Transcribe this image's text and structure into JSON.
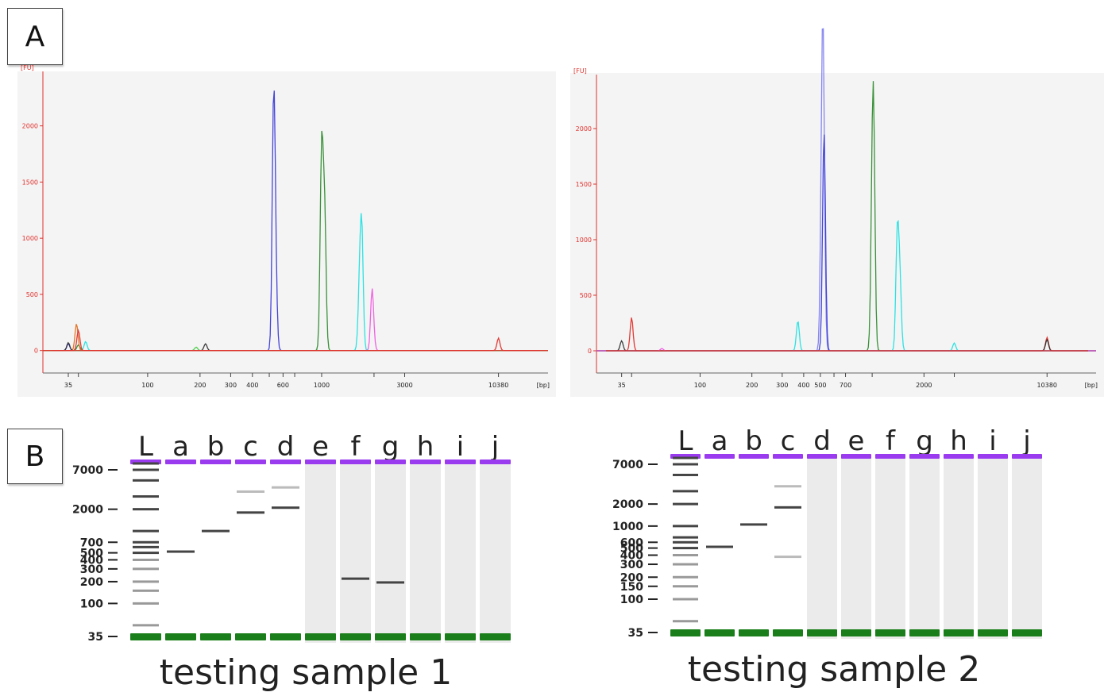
{
  "panels": {
    "a_label": "A",
    "b_label": "B"
  },
  "captions": [
    "testing sample 1",
    "testing sample 2"
  ],
  "colors": {
    "axis": "#e0302b",
    "plot_bg": "#f4f4f4",
    "marker_band": "#1a7f1a",
    "upper_band": "#9b3bf0",
    "gel_band": "#444444"
  },
  "chart_data": [
    {
      "type": "line",
      "title": "",
      "ylabel": "[FU]",
      "xlabel": "[bp]",
      "x_scale": "log",
      "xlim": [
        25,
        20000
      ],
      "ylim": [
        -200,
        2400
      ],
      "yticks": [
        0,
        500,
        1000,
        1500,
        2000
      ],
      "xticks": [
        35,
        100,
        200,
        300,
        400,
        600,
        1000,
        3000,
        10380
      ],
      "xtick_labels": [
        "35",
        "100",
        "200",
        "300",
        "400",
        "600",
        "1000",
        "3000",
        "10380"
      ],
      "extra_tick_marks": [
        40,
        500,
        700,
        2000
      ],
      "grid": false,
      "series": [
        {
          "color": "#3a3ad8",
          "peaks": [
            [
              35,
              60
            ],
            [
              530,
              2180
            ],
            [
              545,
              500
            ]
          ]
        },
        {
          "color": "#2e8b2e",
          "peaks": [
            [
              40,
              50
            ],
            [
              1000,
              1780
            ],
            [
              1040,
              1200
            ]
          ]
        },
        {
          "color": "#22e0e0",
          "peaks": [
            [
              44,
              80
            ],
            [
              1700,
              1040
            ],
            [
              1650,
              500
            ]
          ]
        },
        {
          "color": "#f05ae0",
          "peaks": [
            [
              1950,
              540
            ],
            [
              2000,
              30
            ]
          ]
        },
        {
          "color": "#e07020",
          "peaks": [
            [
              39,
              240
            ]
          ]
        },
        {
          "color": "#333333",
          "peaks": [
            [
              35,
              70
            ],
            [
              215,
              60
            ]
          ]
        },
        {
          "color": "#44cc44",
          "peaks": [
            [
              190,
              30
            ]
          ]
        },
        {
          "color": "#e0302b",
          "peaks": [
            [
              40,
              180
            ],
            [
              10380,
              110
            ]
          ]
        }
      ]
    },
    {
      "type": "line",
      "title": "",
      "ylabel": "[FU]",
      "xlabel": "[bp]",
      "x_scale": "log",
      "xlim": [
        25,
        20000
      ],
      "ylim": [
        -200,
        2400
      ],
      "yticks": [
        0,
        500,
        1000,
        1500,
        2000
      ],
      "xticks": [
        35,
        100,
        200,
        300,
        400,
        500,
        700,
        2000,
        10380
      ],
      "xtick_labels": [
        "35",
        "100",
        "200",
        "300",
        "400",
        "500",
        "700",
        "2000",
        "10380"
      ],
      "extra_tick_marks": [
        40,
        600,
        1000,
        3000
      ],
      "grid": false,
      "series": [
        {
          "color": "#8080f0",
          "peaks": [
            [
              520,
              2100
            ],
            [
              510,
              1300
            ]
          ]
        },
        {
          "color": "#3a3ad8",
          "peaks": [
            [
              525,
              1980
            ]
          ]
        },
        {
          "color": "#2e8b2e",
          "peaks": [
            [
              1020,
              1730
            ],
            [
              1000,
              1000
            ]
          ]
        },
        {
          "color": "#22e0e0",
          "peaks": [
            [
              370,
              270
            ],
            [
              1400,
              1050
            ],
            [
              1450,
              600
            ],
            [
              3000,
              70
            ]
          ]
        },
        {
          "color": "#e0302b",
          "peaks": [
            [
              40,
              300
            ],
            [
              10380,
              120
            ]
          ]
        },
        {
          "color": "#333333",
          "peaks": [
            [
              35,
              90
            ],
            [
              10380,
              100
            ]
          ]
        },
        {
          "color": "#f05ae0",
          "peaks": [
            [
              60,
              20
            ]
          ]
        }
      ]
    },
    {
      "type": "gel",
      "caption": "testing sample 1",
      "lanes": [
        "L",
        "a",
        "b",
        "c",
        "d",
        "e",
        "f",
        "g",
        "h",
        "i",
        "j"
      ],
      "size_labels": [
        "7000",
        "2000",
        "700",
        "500",
        "400",
        "300",
        "200",
        "100",
        "35"
      ],
      "size_values": [
        7000,
        2000,
        700,
        500,
        400,
        300,
        200,
        100,
        35
      ],
      "ladder_bands": [
        10380,
        7000,
        5000,
        3000,
        2000,
        1000,
        700,
        600,
        500,
        400,
        300,
        200,
        150,
        100,
        50
      ],
      "sample_bands": {
        "a": [
          520
        ],
        "b": [
          1000
        ],
        "c": [
          1800,
          3500
        ],
        "d": [
          2100,
          4000
        ],
        "f": [
          220
        ],
        "g": [
          195
        ]
      },
      "smear_lanes": [
        "e",
        "f",
        "g",
        "h",
        "i",
        "j"
      ],
      "marker": {
        "lower": 35,
        "upper": 10380
      }
    },
    {
      "type": "gel",
      "caption": "testing sample 2",
      "lanes": [
        "L",
        "a",
        "b",
        "c",
        "d",
        "e",
        "f",
        "g",
        "h",
        "i",
        "j"
      ],
      "size_labels": [
        "7000",
        "2000",
        "1000",
        "600",
        "500",
        "400",
        "300",
        "200",
        "150",
        "100",
        "35"
      ],
      "size_values": [
        7000,
        2000,
        1000,
        600,
        500,
        400,
        300,
        200,
        150,
        100,
        35
      ],
      "ladder_bands": [
        10380,
        7000,
        5000,
        3000,
        2000,
        1000,
        700,
        600,
        500,
        400,
        300,
        200,
        150,
        100,
        50
      ],
      "sample_bands": {
        "a": [
          520
        ],
        "b": [
          1050
        ],
        "c": [
          1800,
          3500,
          380
        ]
      },
      "smear_lanes": [
        "d",
        "e",
        "f",
        "g",
        "h",
        "i",
        "j"
      ],
      "marker": {
        "lower": 35,
        "upper": 10380
      }
    }
  ]
}
